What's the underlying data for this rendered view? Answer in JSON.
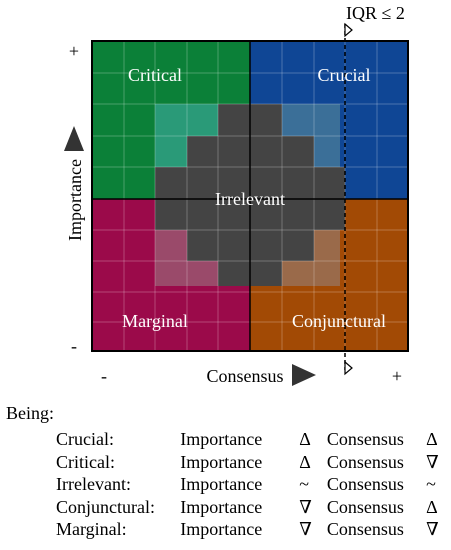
{
  "axes": {
    "y_label": "Importance",
    "x_label": "Consensus",
    "plus_top": "+",
    "minus_bottom": "-",
    "minus_left": "-",
    "plus_right": "+"
  },
  "threshold": {
    "label": "IQR ≤ 2"
  },
  "quadrants": {
    "critical": {
      "label": "Critical",
      "color": "#0b8038"
    },
    "crucial": {
      "label": "Crucial",
      "color": "#0f4695"
    },
    "marginal": {
      "label": "Marginal",
      "color": "#9b0a4a"
    },
    "conjunctural": {
      "label": "Conjunctural",
      "color": "#a24a05"
    },
    "irrelevant": {
      "label": "Irrelevant",
      "color": "#444444"
    }
  },
  "legend": {
    "heading": "Being:",
    "rows": [
      {
        "name": "Crucial:",
        "importance": "Importance",
        "imp_symbol": "Δ",
        "consensus": "Consensus",
        "con_symbol": "Δ"
      },
      {
        "name": "Critical:",
        "importance": "Importance",
        "imp_symbol": "Δ",
        "consensus": "Consensus",
        "con_symbol": "∇"
      },
      {
        "name": "Irrelevant:",
        "importance": "Importance",
        "imp_symbol": "~",
        "consensus": "Consensus",
        "con_symbol": "~"
      },
      {
        "name": "Conjunctural:",
        "importance": "Importance",
        "imp_symbol": "∇",
        "consensus": "Consensus",
        "con_symbol": "Δ"
      },
      {
        "name": "Marginal:",
        "importance": "Importance",
        "imp_symbol": "∇",
        "consensus": "Consensus",
        "con_symbol": "∇"
      }
    ]
  }
}
